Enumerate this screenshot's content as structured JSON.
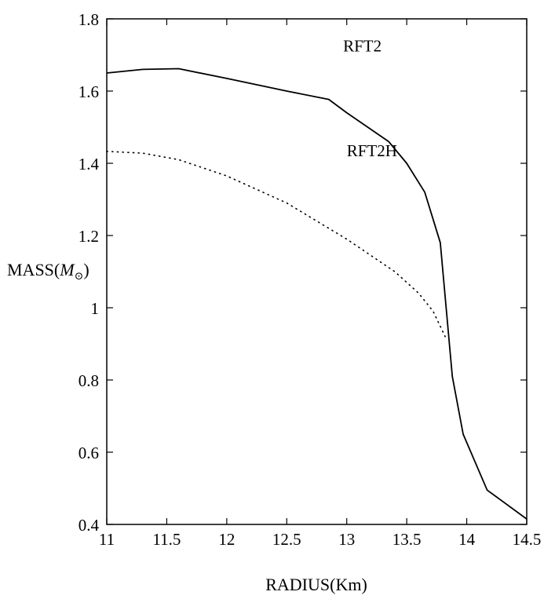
{
  "chart_data": {
    "type": "line",
    "title": "",
    "xlabel": "RADIUS(Km)",
    "ylabel_prefix": "MASS(",
    "ylabel_symbol": "M",
    "ylabel_subscript": "⊙",
    "ylabel_suffix": ")",
    "xlim": [
      11,
      14.5
    ],
    "ylim": [
      0.4,
      1.8
    ],
    "x_ticks": [
      "11",
      "11.5",
      "12",
      "12.5",
      "13",
      "13.5",
      "14",
      "14.5"
    ],
    "x_tick_values": [
      11,
      11.5,
      12,
      12.5,
      13,
      13.5,
      14,
      14.5
    ],
    "y_ticks": [
      "0.4",
      "0.6",
      "0.8",
      "1",
      "1.2",
      "1.4",
      "1.6",
      "1.8"
    ],
    "y_tick_values": [
      0.4,
      0.6,
      0.8,
      1.0,
      1.2,
      1.4,
      1.6,
      1.8
    ],
    "grid": false,
    "series": [
      {
        "name": "RFT2",
        "style": "solid",
        "color": "#000000",
        "x": [
          11.0,
          11.3,
          11.6,
          12.0,
          12.5,
          12.85,
          13.0,
          13.35,
          13.5,
          13.65,
          13.78,
          13.88,
          13.97,
          14.17,
          14.5
        ],
        "y": [
          1.65,
          1.66,
          1.662,
          1.635,
          1.6,
          1.577,
          1.54,
          1.46,
          1.4,
          1.32,
          1.18,
          0.81,
          0.65,
          0.495,
          0.415
        ]
      },
      {
        "name": "RFT2H",
        "style": "dotted",
        "color": "#000000",
        "x": [
          11.0,
          11.3,
          11.6,
          12.0,
          12.5,
          13.0,
          13.4,
          13.6,
          13.72,
          13.82
        ],
        "y": [
          1.433,
          1.428,
          1.41,
          1.365,
          1.29,
          1.19,
          1.1,
          1.04,
          0.99,
          0.92
        ]
      }
    ],
    "annotations": [
      {
        "text": "RFT2",
        "x": 12.97,
        "y": 1.71
      },
      {
        "text": "RFT2H",
        "x": 13.0,
        "y": 1.42
      }
    ]
  }
}
